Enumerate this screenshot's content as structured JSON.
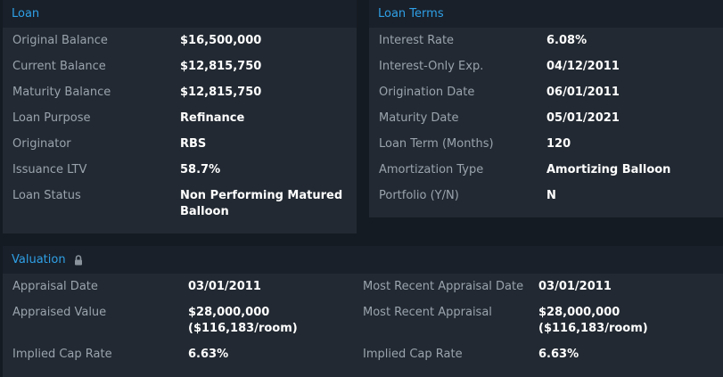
{
  "loan": {
    "title": "Loan",
    "rows": [
      {
        "label": "Original Balance",
        "value": "$16,500,000"
      },
      {
        "label": "Current Balance",
        "value": "$12,815,750"
      },
      {
        "label": "Maturity Balance",
        "value": "$12,815,750"
      },
      {
        "label": "Loan Purpose",
        "value": "Refinance"
      },
      {
        "label": "Originator",
        "value": "RBS"
      },
      {
        "label": "Issuance LTV",
        "value": "58.7%"
      },
      {
        "label": "Loan Status",
        "value_line1": "Non Performing Matured",
        "value_line2": "Balloon"
      }
    ]
  },
  "loan_terms": {
    "title": "Loan Terms",
    "rows": [
      {
        "label": "Interest Rate",
        "value": "6.08%"
      },
      {
        "label": "Interest-Only Exp.",
        "value": "04/12/2011"
      },
      {
        "label": "Origination Date",
        "value": "06/01/2011"
      },
      {
        "label": "Maturity Date",
        "value": "05/01/2021"
      },
      {
        "label": "Loan Term (Months)",
        "value": "120"
      },
      {
        "label": "Amortization Type",
        "value": "Amortizing Balloon"
      },
      {
        "label": "Portfolio (Y/N)",
        "value": "N"
      }
    ]
  },
  "valuation": {
    "title": "Valuation",
    "lock_icon": "lock-icon",
    "left": [
      {
        "label": "Appraisal Date",
        "value": "03/01/2011"
      },
      {
        "label": "Appraised Value",
        "value_line1": "$28,000,000",
        "value_line2": "($116,183/room)"
      },
      {
        "label": "Implied Cap Rate",
        "value": "6.63%"
      }
    ],
    "right": [
      {
        "label": "Most Recent Appraisal Date",
        "value": "03/01/2011"
      },
      {
        "label": "Most Recent Appraisal",
        "value_line1": "$28,000,000",
        "value_line2": "($116,183/room)"
      },
      {
        "label": "Implied Cap Rate",
        "value": "6.63%"
      }
    ]
  }
}
